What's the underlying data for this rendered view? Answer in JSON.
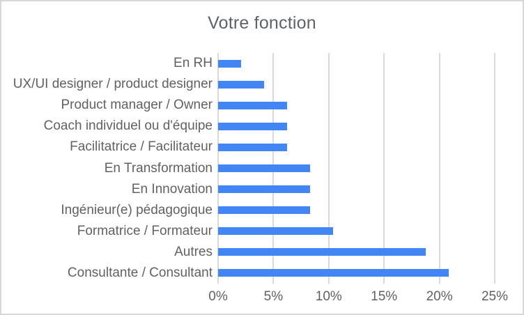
{
  "frame": {
    "background": "#ffffff",
    "border_color": "#d7d7d7"
  },
  "chart_data": {
    "type": "bar",
    "orientation": "horizontal",
    "title": "Votre fonction",
    "categories": [
      "En RH",
      "UX/UI designer / product designer",
      "Product manager / Owner",
      "Coach individuel ou d'équipe",
      "Facilitatrice / Facilitateur",
      "En Transformation",
      "En Innovation",
      "Ingénieur(e) pédagogique",
      "Formatrice / Formateur",
      "Autres",
      "Consultante / Consultant"
    ],
    "values": [
      2.08,
      4.17,
      6.25,
      6.25,
      6.25,
      8.33,
      8.33,
      8.33,
      10.42,
      18.75,
      20.83
    ],
    "value_unit": "%",
    "xlabel": "",
    "ylabel": "",
    "xlim": [
      0,
      25
    ],
    "x_ticks": [
      "0%",
      "5%",
      "10%",
      "15%",
      "20%",
      "25%"
    ],
    "x_tick_values": [
      0,
      5,
      10,
      15,
      20,
      25
    ],
    "grid": true,
    "legend_position": "none",
    "bar_color": "#4285f4",
    "gridline_color": "#dadada",
    "axis_text_color": "#616161",
    "title_color": "#5f6368"
  }
}
